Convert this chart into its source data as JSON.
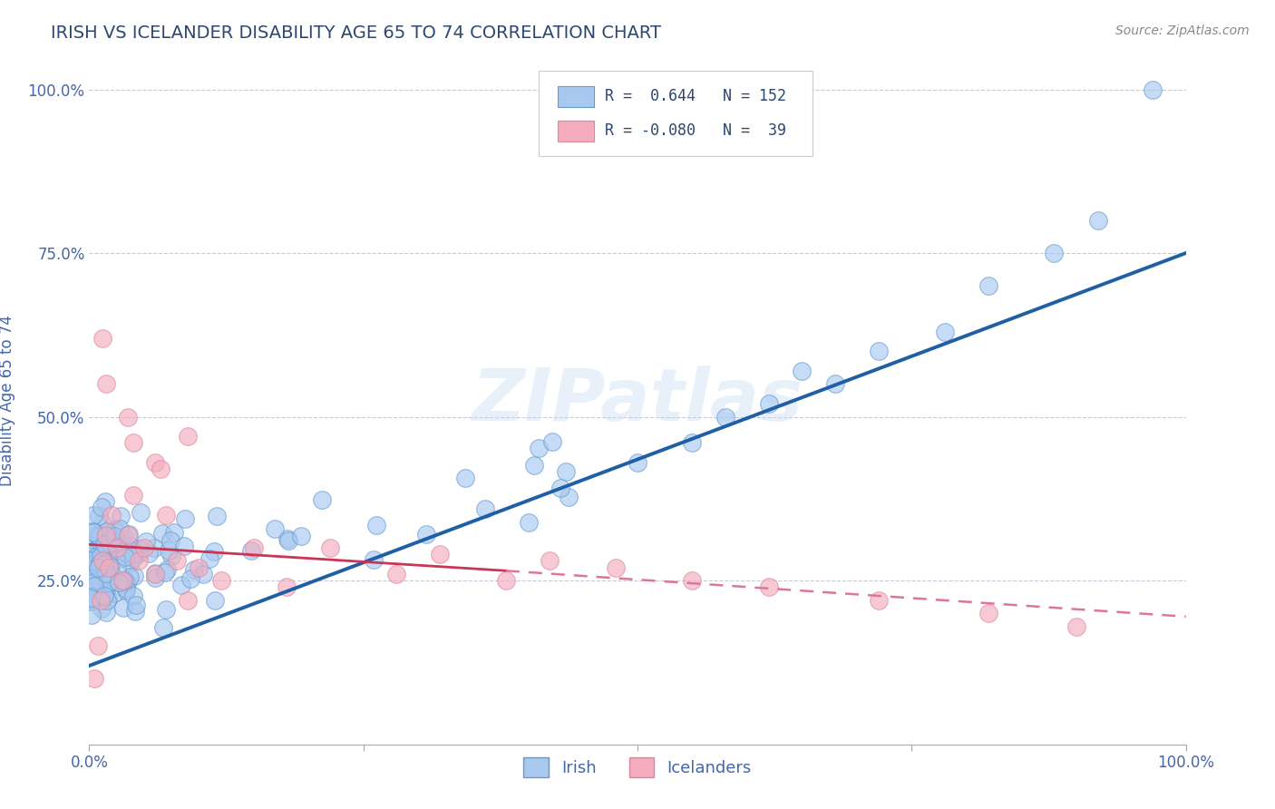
{
  "title": "IRISH VS ICELANDER DISABILITY AGE 65 TO 74 CORRELATION CHART",
  "source_text": "Source: ZipAtlas.com",
  "ylabel": "Disability Age 65 to 74",
  "xlim": [
    0,
    1.0
  ],
  "ylim": [
    0,
    1.05
  ],
  "xticks": [
    0.0,
    0.25,
    0.5,
    0.75,
    1.0
  ],
  "xticklabels": [
    "0.0%",
    "",
    "",
    "",
    "100.0%"
  ],
  "yticks": [
    0.25,
    0.5,
    0.75,
    1.0
  ],
  "yticklabels": [
    "25.0%",
    "50.0%",
    "75.0%",
    "100.0%"
  ],
  "irish_color": "#A8C8F0",
  "icelander_color": "#F4ACBE",
  "irish_edge_color": "#6699CC",
  "icelander_edge_color": "#DD8899",
  "trendline_irish_color": "#1F5FA6",
  "trendline_icelander_solid_color": "#CC3355",
  "trendline_icelander_dash_color": "#DD7799",
  "R_irish": 0.644,
  "N_irish": 152,
  "R_icelander": -0.08,
  "N_icelander": 39,
  "watermark": "ZIPatlas",
  "background_color": "#FFFFFF",
  "grid_color": "#BBBBCC",
  "title_color": "#2C4770",
  "axis_label_color": "#4466AA",
  "tick_label_color": "#4466AA",
  "legend_text_color": "#2C4770"
}
